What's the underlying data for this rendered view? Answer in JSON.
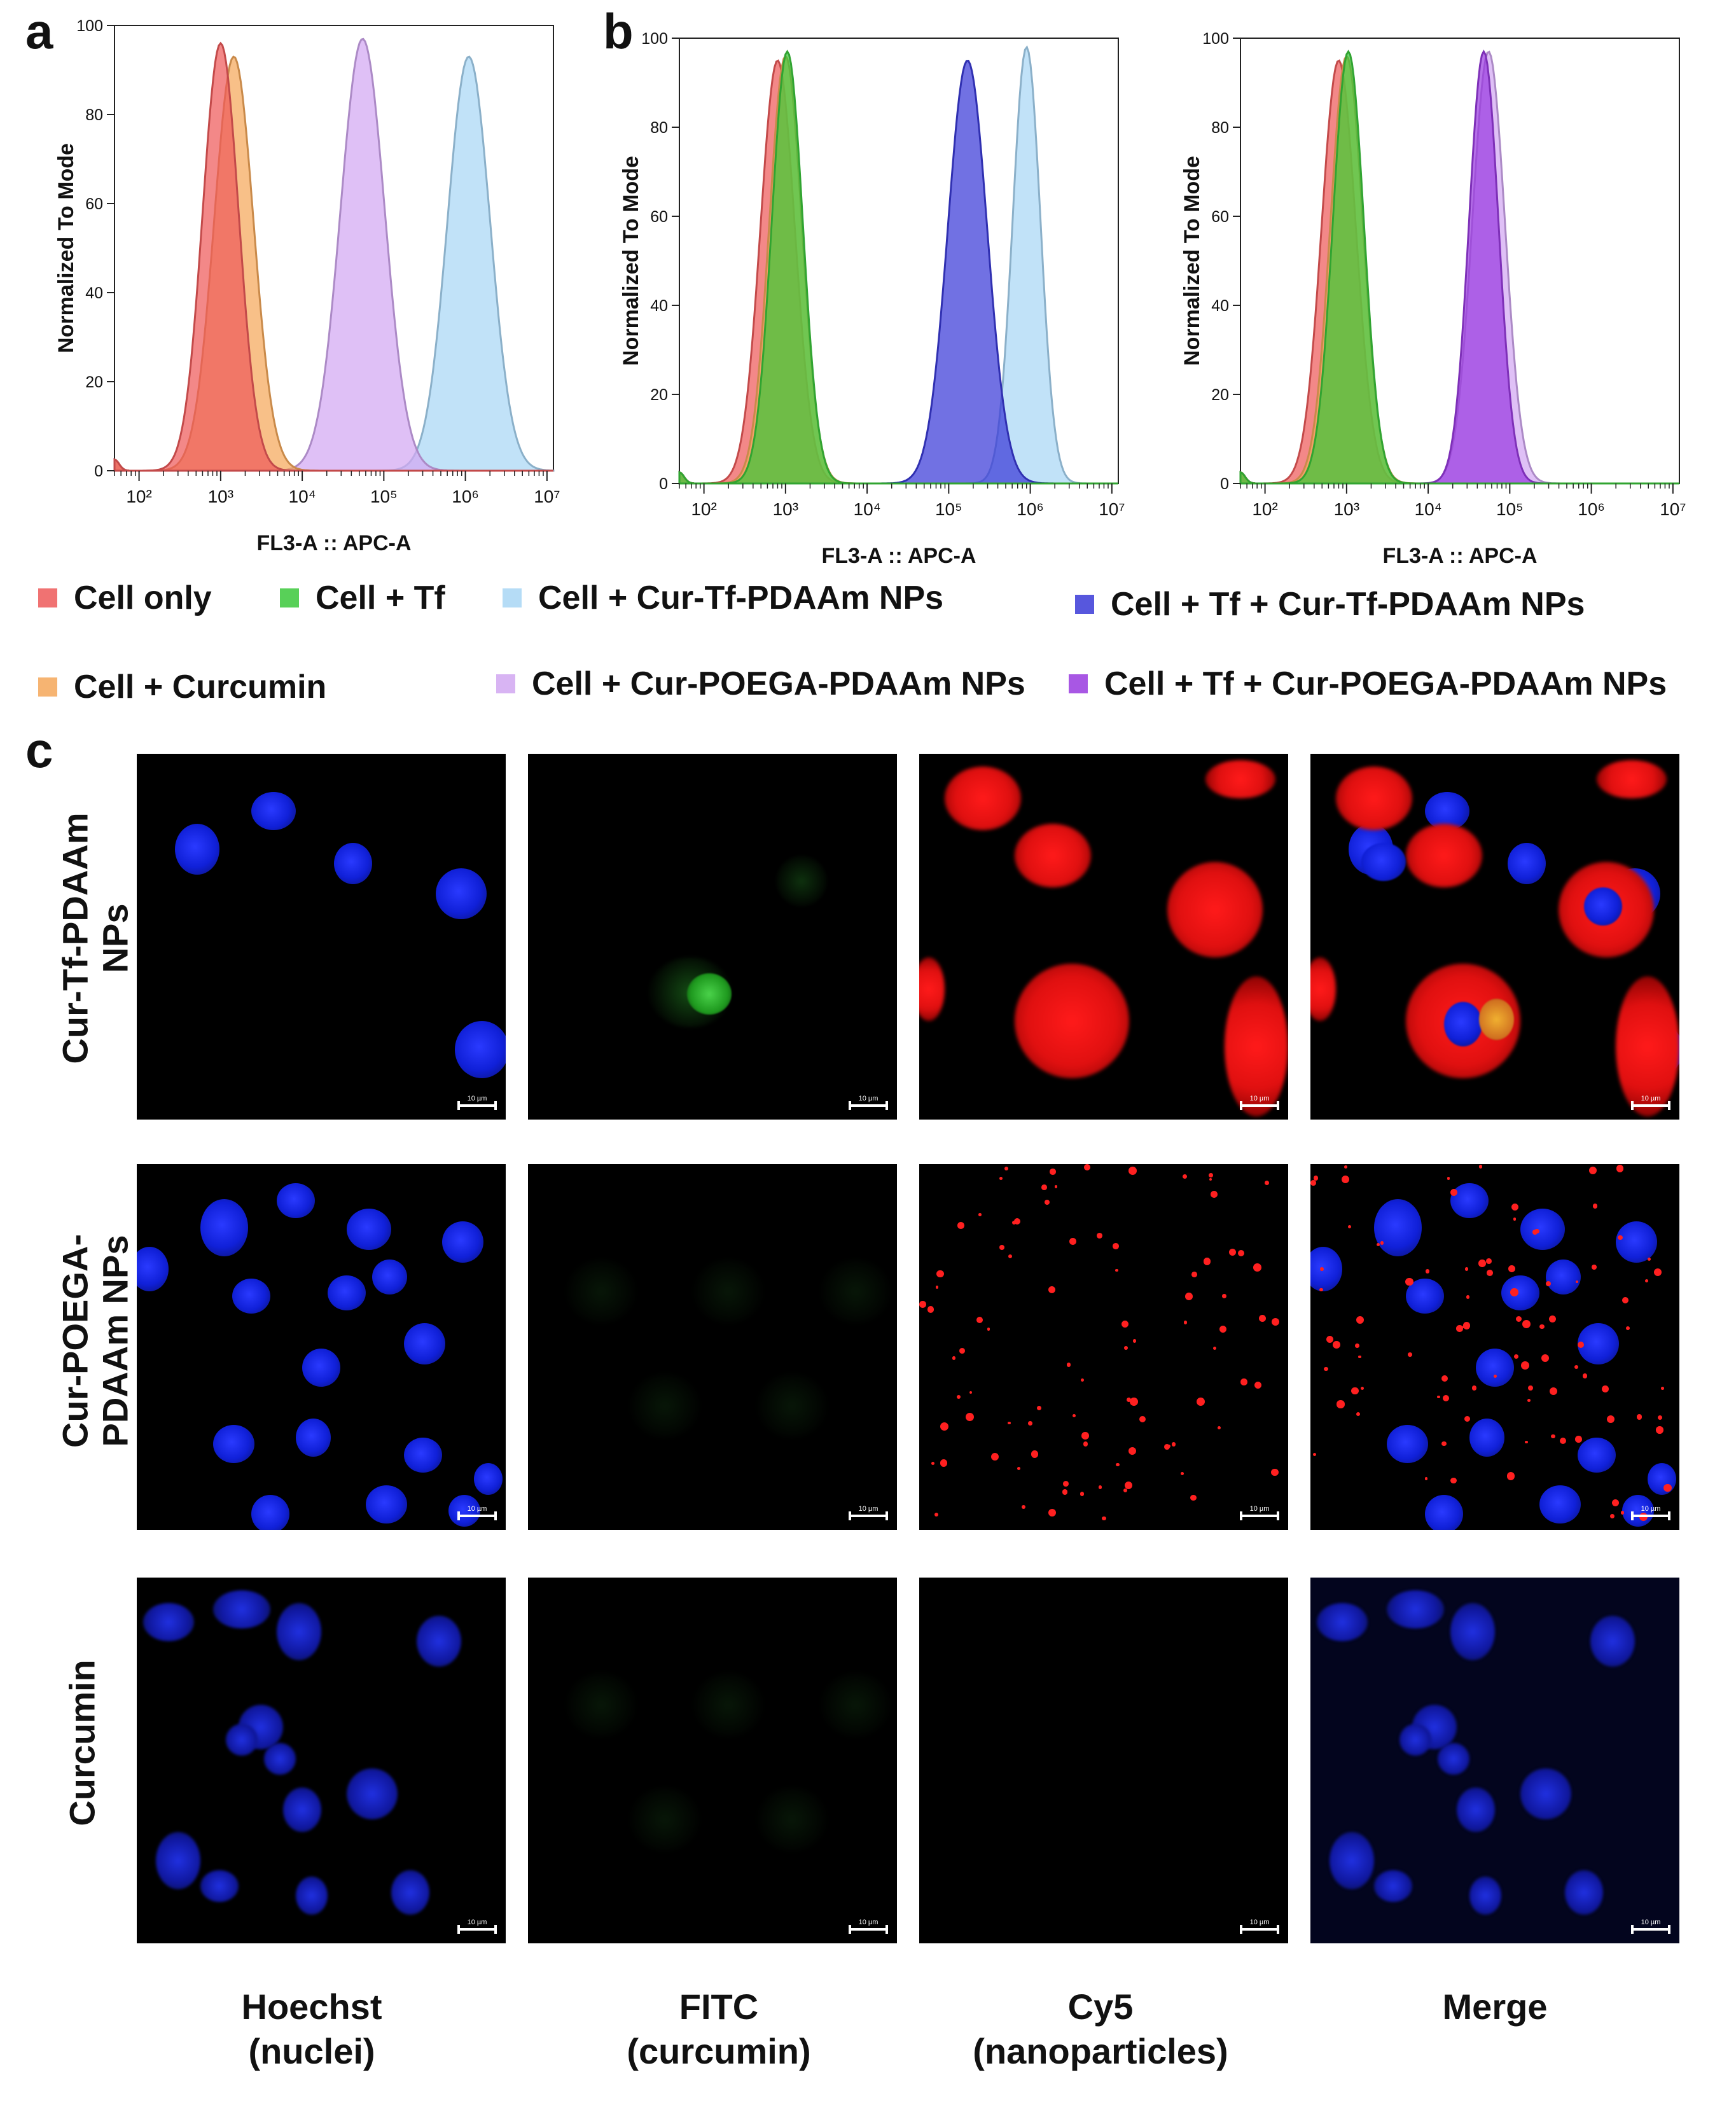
{
  "panels": {
    "a": "a",
    "b": "b",
    "c": "c"
  },
  "colors": {
    "cell_only": "#ee5a5a",
    "cell_tf": "#3cc83c",
    "cell_cur_tf_pdaam": "#a9d7f5",
    "cell_tf_cur_tf_pdaam": "#3a3ad8",
    "cell_curcumin": "#f5a85a",
    "cell_cur_poega_pdaam": "#d2a8f2",
    "cell_tf_cur_poega_pdaam": "#9a3ae0"
  },
  "chart_data": [
    {
      "type": "area",
      "panel": "a",
      "xlabel": "FL3-A :: APC-A",
      "ylabel": "Normalized To Mode",
      "x_scale": "log",
      "xlim": [
        50,
        12000000
      ],
      "ylim": [
        0,
        100
      ],
      "x_ticks": [
        "10²",
        "10³",
        "10⁴",
        "10⁵",
        "10⁶",
        "10⁷"
      ],
      "y_ticks": [
        "0",
        "20",
        "40",
        "60",
        "80",
        "100"
      ],
      "series": [
        {
          "name": "Cell + Cur-Tf-PDAAm NPs",
          "color": "#a9d7f5",
          "peak_x": 1100000,
          "peak_y": 93,
          "width": 0.26
        },
        {
          "name": "Cell + Cur-POEGA-PDAAm NPs",
          "color": "#d2a8f2",
          "peak_x": 55000,
          "peak_y": 97,
          "width": 0.27
        },
        {
          "name": "Cell + Curcumin",
          "color": "#f5a85a",
          "peak_x": 1450,
          "peak_y": 93,
          "width": 0.24
        },
        {
          "name": "Cell only",
          "color": "#ee5a5a",
          "peak_x": 1000,
          "peak_y": 96,
          "width": 0.22
        }
      ]
    },
    {
      "type": "area",
      "panel": "b",
      "xlabel": "FL3-A :: APC-A",
      "ylabel": "Normalized To Mode",
      "x_scale": "log",
      "xlim": [
        50,
        12000000
      ],
      "ylim": [
        0,
        100
      ],
      "x_ticks": [
        "10²",
        "10³",
        "10⁴",
        "10⁵",
        "10⁶",
        "10⁷"
      ],
      "y_ticks": [
        "0",
        "20",
        "40",
        "60",
        "80",
        "100"
      ],
      "series": [
        {
          "name": "Cell + Cur-Tf-PDAAm NPs",
          "color": "#a9d7f5",
          "peak_x": 900000,
          "peak_y": 98,
          "width": 0.17
        },
        {
          "name": "Cell + Tf + Cur-Tf-PDAAm NPs",
          "color": "#3a3ad8",
          "peak_x": 170000,
          "peak_y": 95,
          "width": 0.24
        },
        {
          "name": "Cell only",
          "color": "#ee5a5a",
          "peak_x": 800,
          "peak_y": 95,
          "width": 0.21
        },
        {
          "name": "Cell + Curcumin",
          "color": "#f5a85a",
          "peak_x": 1000,
          "peak_y": 96,
          "width": 0.2
        },
        {
          "name": "Cell + Tf",
          "color": "#3cc83c",
          "peak_x": 1050,
          "peak_y": 97,
          "width": 0.19
        }
      ]
    },
    {
      "type": "area",
      "panel": "b-right",
      "xlabel": "FL3-A :: APC-A",
      "ylabel": "Normalized To Mode",
      "x_scale": "log",
      "xlim": [
        50,
        12000000
      ],
      "ylim": [
        0,
        100
      ],
      "x_ticks": [
        "10²",
        "10³",
        "10⁴",
        "10⁵",
        "10⁶",
        "10⁷"
      ],
      "y_ticks": [
        "0",
        "20",
        "40",
        "60",
        "80",
        "100"
      ],
      "series": [
        {
          "name": "Cell + Cur-POEGA-PDAAm NPs",
          "color": "#d2a8f2",
          "peak_x": 55000,
          "peak_y": 97,
          "width": 0.2
        },
        {
          "name": "Cell + Tf + Cur-POEGA-PDAAm NPs",
          "color": "#9a3ae0",
          "peak_x": 48000,
          "peak_y": 97,
          "width": 0.18
        },
        {
          "name": "Cell only",
          "color": "#ee5a5a",
          "peak_x": 800,
          "peak_y": 95,
          "width": 0.21
        },
        {
          "name": "Cell + Curcumin",
          "color": "#f5a85a",
          "peak_x": 1000,
          "peak_y": 96,
          "width": 0.2
        },
        {
          "name": "Cell + Tf",
          "color": "#3cc83c",
          "peak_x": 1050,
          "peak_y": 97,
          "width": 0.19
        }
      ]
    }
  ],
  "legend": [
    {
      "label": "Cell only",
      "color": "#ee5a5a"
    },
    {
      "label": "Cell + Tf",
      "color": "#3cc83c"
    },
    {
      "label": "Cell + Cur-Tf-PDAAm NPs",
      "color": "#a9d7f5"
    },
    {
      "label": "Cell + Tf + Cur-Tf-PDAAm NPs",
      "color": "#3a3ad8"
    },
    {
      "label": "Cell + Curcumin",
      "color": "#f5a85a"
    },
    {
      "label": "Cell + Cur-POEGA-PDAAm NPs",
      "color": "#d2a8f2"
    },
    {
      "label": "Cell + Tf + Cur-POEGA-PDAAm NPs",
      "color": "#9a3ae0"
    }
  ],
  "microscopy": {
    "rows": [
      "Cur-Tf-PDAAm\nNPs",
      "Cur-POEGA-\nPDAAm NPs",
      "Curcumin"
    ],
    "columns": [
      "Hoechst\n(nuclei)",
      "FITC\n(curcumin)",
      "Cy5\n(nanoparticles)",
      "Merge"
    ],
    "scale_bar": "10 µm"
  }
}
